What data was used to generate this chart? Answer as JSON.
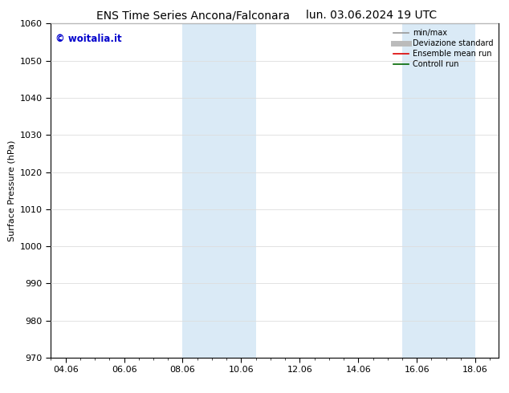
{
  "title_left": "ENS Time Series Ancona/Falconara",
  "title_right": "lun. 03.06.2024 19 UTC",
  "ylabel": "Surface Pressure (hPa)",
  "ylim": [
    970,
    1060
  ],
  "yticks": [
    970,
    980,
    990,
    1000,
    1010,
    1020,
    1030,
    1040,
    1050,
    1060
  ],
  "xlim_start": 3.5,
  "xlim_end": 18.8,
  "xtick_labels": [
    "04.06",
    "06.06",
    "08.06",
    "10.06",
    "12.06",
    "14.06",
    "16.06",
    "18.06"
  ],
  "xtick_positions": [
    4.0,
    6.0,
    8.0,
    10.0,
    12.0,
    14.0,
    16.0,
    18.0
  ],
  "shaded_bands": [
    {
      "x_start": 8.0,
      "x_end": 9.0,
      "color": "#daeaf6"
    },
    {
      "x_start": 9.0,
      "x_end": 10.5,
      "color": "#daeaf6"
    },
    {
      "x_start": 15.5,
      "x_end": 16.5,
      "color": "#daeaf6"
    },
    {
      "x_start": 16.5,
      "x_end": 18.0,
      "color": "#daeaf6"
    }
  ],
  "watermark_text": "© woitalia.it",
  "watermark_color": "#0000cc",
  "legend_items": [
    {
      "label": "min/max",
      "color": "#999999",
      "lw": 1.2
    },
    {
      "label": "Deviazione standard",
      "color": "#bbbbbb",
      "lw": 5
    },
    {
      "label": "Ensemble mean run",
      "color": "#dd0000",
      "lw": 1.2
    },
    {
      "label": "Controll run",
      "color": "#006600",
      "lw": 1.2
    }
  ],
  "bg_color": "#ffffff",
  "grid_color": "#dddddd",
  "title_fontsize": 10,
  "axis_label_fontsize": 8,
  "tick_fontsize": 8
}
